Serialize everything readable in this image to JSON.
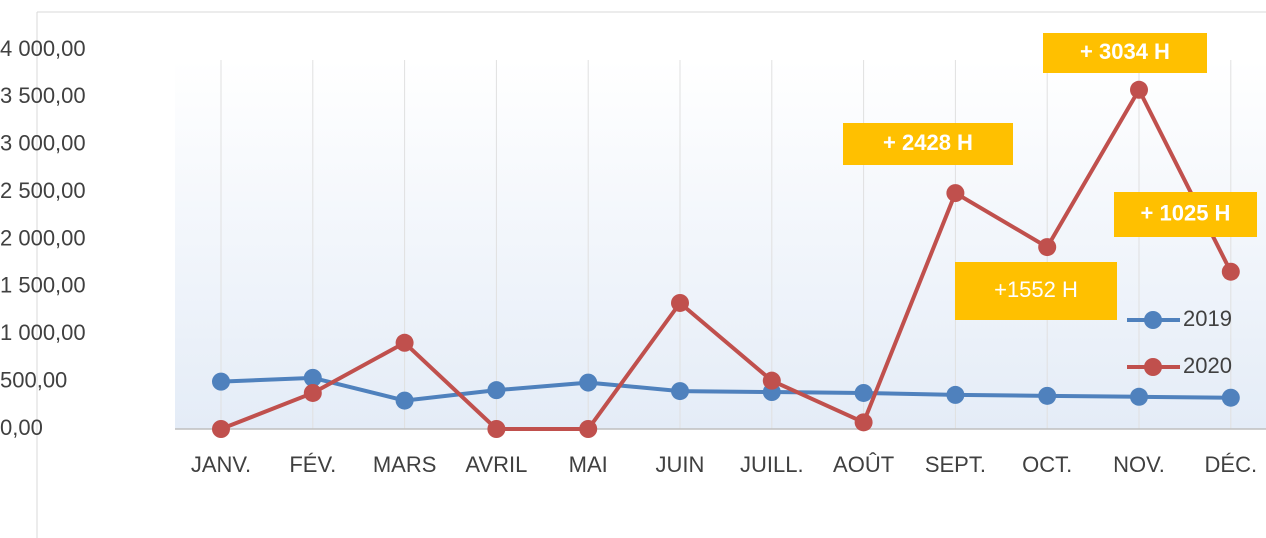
{
  "chart_data": {
    "type": "line",
    "categories": [
      "JANV.",
      "FÉV.",
      "MARS",
      "AVRIL",
      "MAI",
      "JUIN",
      "JUILL.",
      "AOÛT",
      "SEPT.",
      "OCT.",
      "NOV.",
      "DÉC."
    ],
    "series": [
      {
        "name": "2019",
        "color": "#4f81bd",
        "values": [
          500,
          540,
          300,
          410,
          490,
          400,
          390,
          380,
          360,
          350,
          340,
          330
        ]
      },
      {
        "name": "2020",
        "color": "#c0504d",
        "values": [
          0,
          380,
          910,
          0,
          0,
          1330,
          510,
          70,
          2490,
          1920,
          3580,
          1660
        ]
      }
    ],
    "ylim": [
      0,
      4000
    ],
    "yticks": [
      {
        "value": 0,
        "label": "0,00"
      },
      {
        "value": 500,
        "label": "500,00"
      },
      {
        "value": 1000,
        "label": "1 000,00"
      },
      {
        "value": 1500,
        "label": "1 500,00"
      },
      {
        "value": 2000,
        "label": "2 000,00"
      },
      {
        "value": 2500,
        "label": "2 500,00"
      },
      {
        "value": 3000,
        "label": "3 000,00"
      },
      {
        "value": 3500,
        "label": "3 500,00"
      },
      {
        "value": 4000,
        "label": "4 000,00"
      }
    ],
    "grid": true,
    "legend": "right",
    "annotations": [
      "+ 2428 H",
      "+ 3034 H",
      "+ 1025 H",
      "+1552 H"
    ]
  }
}
